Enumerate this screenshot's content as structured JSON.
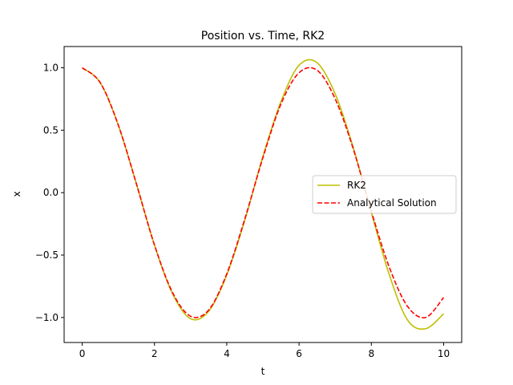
{
  "chart_data": {
    "type": "line",
    "title": "Position vs. Time, RK2",
    "xlabel": "t",
    "ylabel": "x",
    "xlim": [
      -0.5,
      10.5
    ],
    "ylim": [
      -1.2,
      1.17
    ],
    "x_ticks": [
      0,
      2,
      4,
      6,
      8,
      10
    ],
    "x_tick_labels": [
      "0",
      "2",
      "4",
      "6",
      "8",
      "10"
    ],
    "y_ticks": [
      1.0,
      0.5,
      0.0,
      -0.5,
      -1.0
    ],
    "y_tick_labels": [
      "1.0",
      "0.5",
      "0.0",
      "−0.5",
      "−1.0"
    ],
    "grid": false,
    "legend_position": "center-right",
    "x": [
      0,
      0.5,
      1,
      1.5,
      2,
      2.5,
      3,
      3.5,
      4,
      4.5,
      5,
      5.5,
      6,
      6.5,
      7,
      7.5,
      8,
      8.5,
      9,
      9.5,
      10
    ],
    "series": [
      {
        "name": "RK2",
        "color": "#bfbf00",
        "style": "solid",
        "values": [
          1.0,
          0.88,
          0.54,
          0.07,
          -0.42,
          -0.81,
          -1.01,
          -0.95,
          -0.66,
          -0.22,
          0.29,
          0.73,
          1.02,
          1.04,
          0.79,
          0.36,
          -0.16,
          -0.66,
          -1.02,
          -1.09,
          -0.97
        ]
      },
      {
        "name": "Analytical Solution",
        "color": "#ff0000",
        "style": "dashed",
        "values": [
          1.0,
          0.88,
          0.54,
          0.07,
          -0.42,
          -0.8,
          -0.99,
          -0.94,
          -0.65,
          -0.21,
          0.28,
          0.71,
          0.96,
          0.98,
          0.75,
          0.35,
          -0.15,
          -0.6,
          -0.91,
          -1.0,
          -0.84
        ]
      }
    ]
  }
}
